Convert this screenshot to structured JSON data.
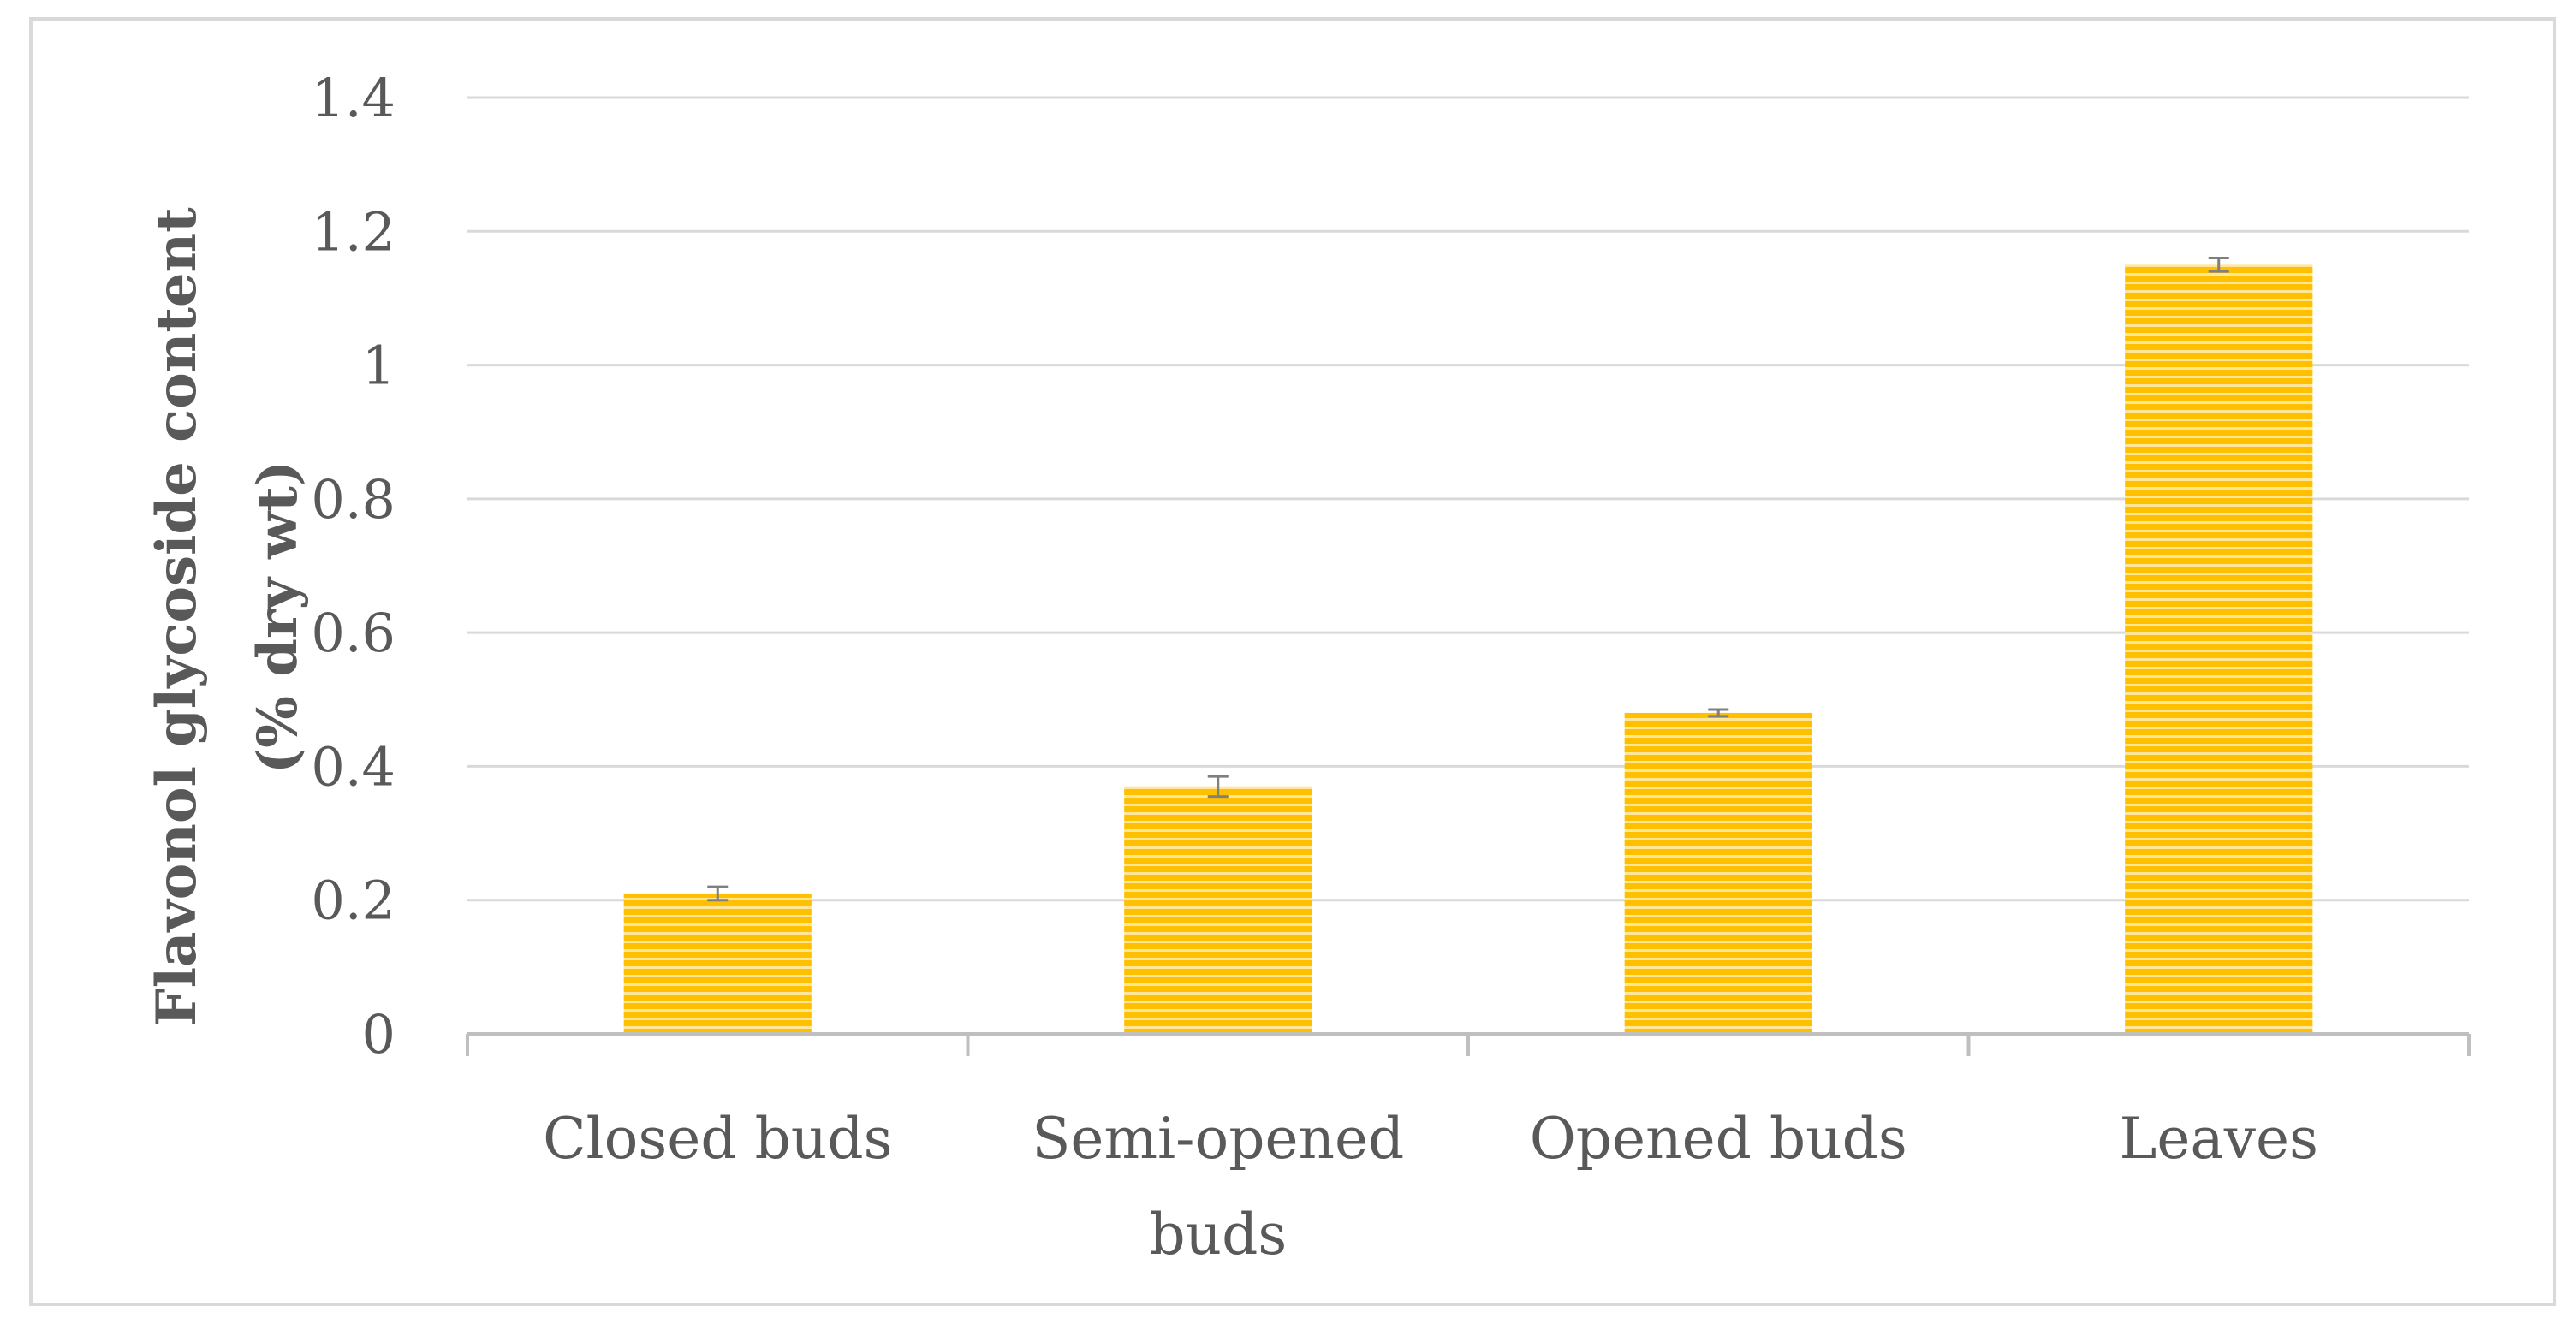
{
  "chart_data": {
    "type": "bar",
    "title": "",
    "xlabel": "",
    "ylabel_lines": [
      "Flavonol glycoside content",
      "(% dry wt)"
    ],
    "categories": [
      [
        "Closed buds"
      ],
      [
        "Semi-opened",
        "buds"
      ],
      [
        "Opened buds"
      ],
      [
        "Leaves"
      ]
    ],
    "values": [
      0.21,
      0.37,
      0.48,
      1.15
    ],
    "errors": [
      0.01,
      0.015,
      0.005,
      0.01
    ],
    "ylim": [
      0,
      1.4
    ],
    "yticks": [
      "0",
      "0.2",
      "0.4",
      "0.6",
      "0.8",
      "1",
      "1.2",
      "1.4"
    ],
    "grid": true,
    "legend": "none",
    "colors": {
      "bar_fill": "#ffc000",
      "bar_stripe": "#ffe699",
      "grid": "#d9d9d9",
      "axis": "#bfbfbf",
      "text": "#595959",
      "error_bar": "#7f7f7f"
    }
  }
}
